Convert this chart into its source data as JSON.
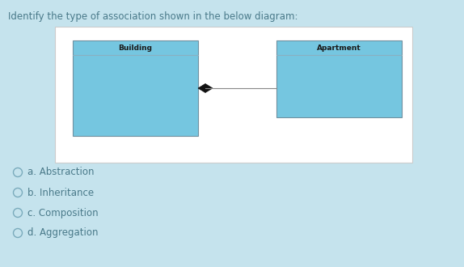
{
  "background_color": "#c5e3ed",
  "title_text": "Identify the type of association shown in the below diagram:",
  "title_color": "#4a7a8a",
  "title_fontsize": 8.5,
  "diagram_bg": "#ffffff",
  "box_fill": "#75c6e0",
  "box_edge": "#7090a0",
  "header_line_color": "#8ab0c0",
  "left_box_label": "Building",
  "right_box_label": "Apartment",
  "label_fontsize": 6.5,
  "label_color": "#1a1a1a",
  "line_color": "#888888",
  "diamond_color": "#111111",
  "options": [
    "a. Abstraction",
    "b. Inheritance",
    "c. Composition",
    "d. Aggregation"
  ],
  "option_fontsize": 8.5,
  "option_color": "#4a7a8a"
}
